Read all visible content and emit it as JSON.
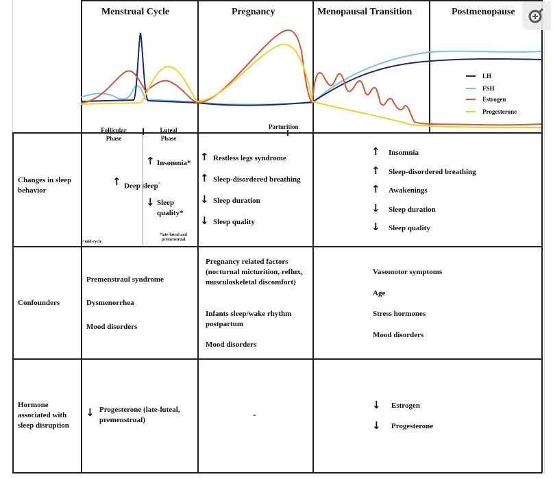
{
  "header": {
    "columns": [
      "Menstrual Cycle",
      "Pregnancy",
      "Menopausal Transition",
      "Postmenopause"
    ]
  },
  "legend": [
    {
      "label": "LH",
      "color": "#1f2a6e"
    },
    {
      "label": "FSH",
      "color": "#7ec3d6"
    },
    {
      "label": "Estrogen",
      "color": "#d2553a"
    },
    {
      "label": "Progesterone",
      "color": "#f2d02a"
    }
  ],
  "phase_labels": {
    "follicular": "Follicular Phase",
    "luteal": "Luteal Phase",
    "parturition": "Parturition"
  },
  "rows": {
    "sleep": {
      "label": "Changes in sleep behavior",
      "menstrual": {
        "deep_sleep": "Deep sleep",
        "deep_sleep_mark": "^",
        "insomnia": "Insomnia*",
        "sleep_quality": "Sleep quality*",
        "note_mid": "^mid-cycle",
        "note_late": "*late-luteal and premenstrual"
      },
      "pregnancy": [
        "Restless legs syndrome",
        "Sleep-disordered breathing",
        "Sleep duration",
        "Sleep quality"
      ],
      "pregnancy_dirs": [
        "up",
        "up",
        "down",
        "down"
      ],
      "menopause": [
        "Insomnia",
        "Sleep-disordered breathing",
        "Awakenings",
        "Sleep duration",
        "Sleep quality"
      ],
      "menopause_dirs": [
        "up",
        "up",
        "up",
        "down",
        "down"
      ]
    },
    "confounders": {
      "label": "Confounders",
      "menstrual": [
        "Premenstraul syndrome",
        "Dysmenorrhea",
        "Mood disorders"
      ],
      "pregnancy": [
        "Pregnancy related factors (nocturnal micturition, reflux, musculoskeletal discomfort)",
        "Infants sleep/wake rhythm postpartum",
        "Mood disorders"
      ],
      "menopause": [
        "Vasomotor symptoms",
        "Age",
        "Stress hormones",
        "Mood disorders"
      ]
    },
    "hormone": {
      "label": "Hormone associated with sleep disruption",
      "menstrual": "Progesterone (late-luteal, premenstrual)",
      "pregnancy": "-",
      "menopause": [
        "Estrogen",
        "Progesterone"
      ]
    }
  },
  "zoom_button": "zoom-in-icon"
}
